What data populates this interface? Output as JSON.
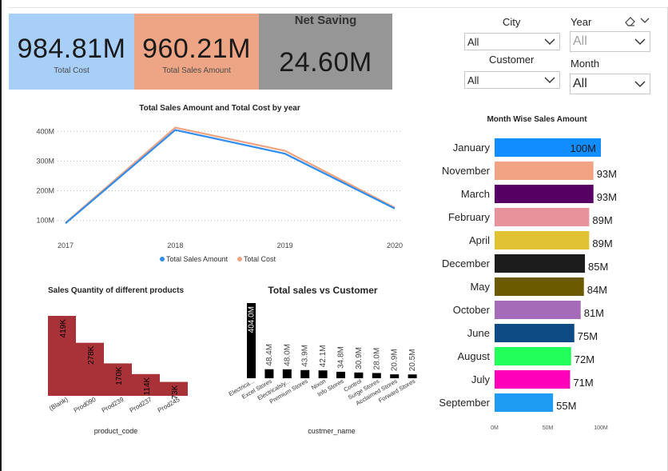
{
  "kpis": {
    "total_cost": {
      "value": "984.81M",
      "label": "Total Cost",
      "color": "#a8cff8"
    },
    "total_sales": {
      "value": "960.21M",
      "label": "Total Sales Amount",
      "color": "#eea585"
    },
    "net_saving": {
      "title": "Net Saving",
      "value": "24.60M",
      "color": "#969696"
    }
  },
  "slicers": {
    "city": {
      "title": "City",
      "value": "All"
    },
    "customer": {
      "title": "Customer",
      "value": "All"
    },
    "year": {
      "title": "Year",
      "value": "All"
    },
    "month": {
      "title": "Month",
      "value": "All"
    }
  },
  "chart_data": [
    {
      "id": "line",
      "type": "line",
      "title": "Total Sales Amount and Total Cost by year",
      "categories": [
        "2017",
        "2018",
        "2019",
        "2020"
      ],
      "series": [
        {
          "name": "Total Sales Amount",
          "values": [
            90,
            405,
            325,
            140
          ],
          "color": "#2f8df0"
        },
        {
          "name": "Total Cost",
          "values": [
            92,
            413,
            335,
            143
          ],
          "color": "#f0a37f"
        }
      ],
      "ylim": [
        80,
        420
      ],
      "yticks": [
        "100M",
        "200M",
        "300M",
        "400M"
      ],
      "legend": "bottom-center"
    },
    {
      "id": "products",
      "type": "bar",
      "title": "Sales Quantity of different products",
      "xlabel": "product_code",
      "categories": [
        "(Blank)",
        "Prod090",
        "Prod239",
        "Prod237",
        "Prod245"
      ],
      "values": [
        419,
        278,
        170,
        114,
        73
      ],
      "labels": [
        "419K",
        "278K",
        "170K",
        "114K",
        "73K"
      ],
      "color": "#a83238"
    },
    {
      "id": "customers",
      "type": "bar",
      "title": "Total sales vs Customer",
      "xlabel": "custmer_name",
      "categories": [
        "Electrica...",
        "Excel Stores",
        "Electricalsly...",
        "Premium Stores",
        "Nixon",
        "Info Stores",
        "Control",
        "Surge Stores",
        "Acclaimed Stores",
        "Forward Stores"
      ],
      "values": [
        404.0,
        48.4,
        48.0,
        43.9,
        42.1,
        34.8,
        30.9,
        28.0,
        20.9,
        20.5
      ],
      "labels": [
        "404.0M",
        "48.4M",
        "48.0M",
        "43.9M",
        "42.1M",
        "34.8M",
        "30.9M",
        "28.0M",
        "20.9M",
        "20.5M"
      ],
      "color": "#000000"
    },
    {
      "id": "months",
      "type": "bar",
      "orientation": "horizontal",
      "title": "Month Wise Sales Amount",
      "categories": [
        "January",
        "November",
        "March",
        "February",
        "April",
        "December",
        "May",
        "October",
        "June",
        "August",
        "July",
        "September"
      ],
      "values": [
        100,
        93,
        93,
        89,
        89,
        85,
        84,
        81,
        75,
        72,
        71,
        55
      ],
      "labels": [
        "100M",
        "93M",
        "93M",
        "89M",
        "89M",
        "85M",
        "84M",
        "81M",
        "75M",
        "72M",
        "71M",
        "55M"
      ],
      "colors": [
        "#118dff",
        "#f1a383",
        "#560064",
        "#e8929c",
        "#e1c233",
        "#1c1c1c",
        "#6b5a00",
        "#a66bb8",
        "#0e4a84",
        "#23ff5a",
        "#ff00b8",
        "#1e9cf4"
      ],
      "xlim": [
        0,
        100
      ],
      "xticks": [
        "0M",
        "50M",
        "100M"
      ]
    }
  ]
}
